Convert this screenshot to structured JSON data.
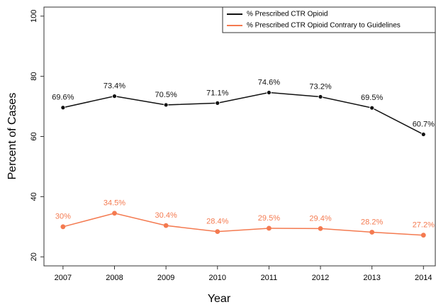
{
  "chart_data": {
    "type": "line",
    "x": [
      2007,
      2008,
      2009,
      2010,
      2011,
      2012,
      2013,
      2014
    ],
    "xlim": [
      2006.63,
      2014.23
    ],
    "xticks": [
      2007,
      2008,
      2009,
      2010,
      2011,
      2012,
      2013,
      2014
    ],
    "ylim": [
      17,
      103
    ],
    "yticks": [
      20,
      40,
      60,
      80,
      100
    ],
    "x_label": "Year",
    "y_label": "Percent of Cases",
    "legend": "top-right",
    "series": [
      {
        "name": "% Prescribed CTR Opioid",
        "color": "#111111",
        "values": [
          69.6,
          73.4,
          70.5,
          71.1,
          74.6,
          73.2,
          69.5,
          60.7
        ],
        "value_labels": [
          "69.6%",
          "73.4%",
          "70.5%",
          "71.1%",
          "74.6%",
          "73.2%",
          "69.5%",
          "60.7%"
        ]
      },
      {
        "name": "% Prescribed CTR Opioid Contrary to Guidelines",
        "color": "#f47a50",
        "values": [
          30,
          34.5,
          30.4,
          28.4,
          29.5,
          29.4,
          28.2,
          27.2
        ],
        "value_labels": [
          "30%",
          "34.5%",
          "30.4%",
          "28.4%",
          "29.5%",
          "29.4%",
          "28.2%",
          "27.2%"
        ]
      }
    ]
  }
}
